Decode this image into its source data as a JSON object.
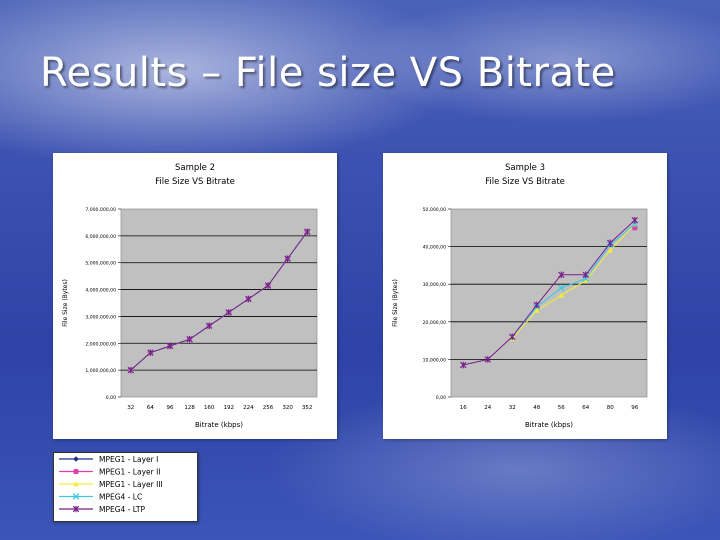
{
  "slide": {
    "title": "Results – File size VS Bitrate"
  },
  "series_styles": [
    {
      "name": "MPEG1 - Layer I",
      "color": "#1f2f86",
      "marker": "diamond"
    },
    {
      "name": "MPEG1 - Layer II",
      "color": "#e23ea8",
      "marker": "square"
    },
    {
      "name": "MPEG1 - Layer III",
      "color": "#f2ee3a",
      "marker": "triangle"
    },
    {
      "name": "MPEG4 - LC",
      "color": "#39c8e6",
      "marker": "x"
    },
    {
      "name": "MPEG4 - LTP",
      "color": "#7a1f8c",
      "marker": "star"
    }
  ],
  "chart_data": [
    {
      "type": "line",
      "title": "Sample 2",
      "subtitle": "File Size VS Bitrate",
      "xlabel": "Bitrate (kbps)",
      "ylabel": "File Size (Bytes)",
      "categories": [
        "32",
        "64",
        "96",
        "128",
        "160",
        "192",
        "224",
        "256",
        "320",
        "352"
      ],
      "ylim": [
        0,
        7000000
      ],
      "yticks": [
        "0,00",
        "1,000,000,00",
        "2,000,000,00",
        "3,000,000,00",
        "4,000,000,00",
        "5,000,000,00",
        "6,000,000,00",
        "7,000,000,00"
      ],
      "grid": true,
      "series": [
        {
          "name": "MPEG1 - Layer I",
          "values": [
            1000000,
            1650000,
            1900000,
            2150000,
            2650000,
            3150000,
            3650000,
            4150000,
            5150000,
            6150000
          ]
        },
        {
          "name": "MPEG1 - Layer II",
          "values": [
            1000000,
            1650000,
            1900000,
            2150000,
            2650000,
            3150000,
            3650000,
            4150000,
            5150000,
            6150000
          ]
        },
        {
          "name": "MPEG1 - Layer III",
          "values": [
            1000000,
            1650000,
            1900000,
            2150000,
            2650000,
            3150000,
            3650000,
            4150000,
            5150000,
            6150000
          ]
        },
        {
          "name": "MPEG4 - LC",
          "values": [
            1000000,
            1650000,
            1900000,
            2150000,
            2650000,
            3150000,
            3650000,
            4150000,
            5150000,
            6150000
          ]
        },
        {
          "name": "MPEG4 - LTP",
          "values": [
            1000000,
            1650000,
            1900000,
            2150000,
            2650000,
            3150000,
            3650000,
            4150000,
            5150000,
            6150000
          ]
        }
      ]
    },
    {
      "type": "line",
      "title": "Sample 3",
      "subtitle": "File Size VS Bitrate",
      "xlabel": "Bitrate (kbps)",
      "ylabel": "File Size (Bytes)",
      "categories": [
        "16",
        "24",
        "32",
        "48",
        "56",
        "64",
        "80",
        "96"
      ],
      "ylim": [
        0,
        50000
      ],
      "yticks": [
        "0,00",
        "10,000,00",
        "20,000,00",
        "30,000,00",
        "40,000,00",
        "50,000,00"
      ],
      "grid": true,
      "series": [
        {
          "name": "MPEG1 - Layer I",
          "values": [
            null,
            null,
            null,
            null,
            null,
            null,
            null,
            45000
          ]
        },
        {
          "name": "MPEG1 - Layer II",
          "values": [
            null,
            null,
            null,
            null,
            null,
            null,
            null,
            45000
          ]
        },
        {
          "name": "MPEG1 - Layer III",
          "values": [
            null,
            null,
            15500,
            23000,
            27000,
            31000,
            39000,
            46000
          ]
        },
        {
          "name": "MPEG4 - LC",
          "values": [
            null,
            null,
            16000,
            24000,
            29000,
            31500,
            40500,
            46000
          ]
        },
        {
          "name": "MPEG4 - LTP",
          "values": [
            8500,
            10000,
            16000,
            24500,
            32500,
            32500,
            41000,
            47000
          ]
        }
      ]
    }
  ]
}
